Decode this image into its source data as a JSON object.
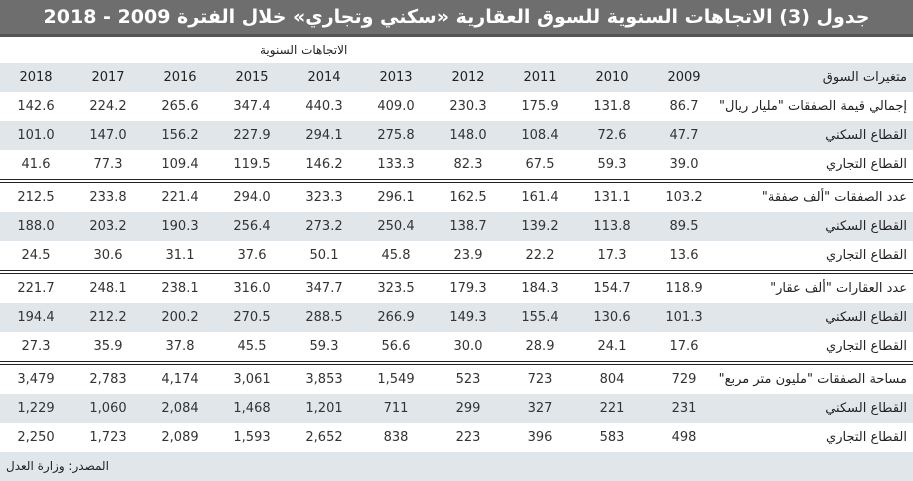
{
  "title": "جدول (3) الاتجاهات السنوية للسوق العقارية «سكني وتجاري» خلال الفترة 2009 - 2018",
  "super_header": "الاتجاهات السنوية",
  "header": {
    "label": "متغيرات السوق",
    "years": [
      "2009",
      "2010",
      "2011",
      "2012",
      "2013",
      "2014",
      "2015",
      "2016",
      "2017",
      "2018"
    ]
  },
  "sections": [
    {
      "rows": [
        {
          "label": "إجمالي قيمة الصفقات \"مليار ريال\"",
          "values": [
            "86.7",
            "131.8",
            "175.9",
            "230.3",
            "409.0",
            "440.3",
            "347.4",
            "265.6",
            "224.2",
            "142.6"
          ]
        },
        {
          "label": "القطاع السكني",
          "values": [
            "47.7",
            "72.6",
            "108.4",
            "148.0",
            "275.8",
            "294.1",
            "227.9",
            "156.2",
            "147.0",
            "101.0"
          ]
        },
        {
          "label": "القطاع التجاري",
          "values": [
            "39.0",
            "59.3",
            "67.5",
            "82.3",
            "133.3",
            "146.2",
            "119.5",
            "109.4",
            "77.3",
            "41.6"
          ]
        }
      ]
    },
    {
      "rows": [
        {
          "label": "عدد الصفقات \"ألف صفقة\"",
          "values": [
            "103.2",
            "131.1",
            "161.4",
            "162.5",
            "296.1",
            "323.3",
            "294.0",
            "221.4",
            "233.8",
            "212.5"
          ]
        },
        {
          "label": "القطاع السكني",
          "values": [
            "89.5",
            "113.8",
            "139.2",
            "138.7",
            "250.4",
            "273.2",
            "256.4",
            "190.3",
            "203.2",
            "188.0"
          ]
        },
        {
          "label": "القطاع التجاري",
          "values": [
            "13.6",
            "17.3",
            "22.2",
            "23.9",
            "45.8",
            "50.1",
            "37.6",
            "31.1",
            "30.6",
            "24.5"
          ]
        }
      ]
    },
    {
      "rows": [
        {
          "label": "عدد العقارات \"ألف عقار\"",
          "values": [
            "118.9",
            "154.7",
            "184.3",
            "179.3",
            "323.5",
            "347.7",
            "316.0",
            "238.1",
            "248.1",
            "221.7"
          ]
        },
        {
          "label": "القطاع السكني",
          "values": [
            "101.3",
            "130.6",
            "155.4",
            "149.3",
            "266.9",
            "288.5",
            "270.5",
            "200.2",
            "212.2",
            "194.4"
          ]
        },
        {
          "label": "القطاع التجاري",
          "values": [
            "17.6",
            "24.1",
            "28.9",
            "30.0",
            "56.6",
            "59.3",
            "45.5",
            "37.8",
            "35.9",
            "27.3"
          ]
        }
      ]
    },
    {
      "rows": [
        {
          "label": "مساحة الصفقات \"مليون متر مربع\"",
          "values": [
            "729",
            "804",
            "723",
            "523",
            "1,549",
            "3,853",
            "3,061",
            "4,174",
            "2,783",
            "3,479"
          ]
        },
        {
          "label": "القطاع السكني",
          "values": [
            "231",
            "221",
            "327",
            "299",
            "711",
            "1,201",
            "1,468",
            "2,084",
            "1,060",
            "1,229"
          ]
        },
        {
          "label": "القطاع التجاري",
          "values": [
            "498",
            "583",
            "396",
            "223",
            "838",
            "2,652",
            "1,593",
            "2,089",
            "1,723",
            "2,250"
          ]
        }
      ]
    }
  ],
  "footer": {
    "source": "المصدر: وزارة العدل"
  },
  "colors": {
    "title_bg": "#6e6e6e",
    "row_shade": "#e1e6ea",
    "rule": "#222222"
  }
}
